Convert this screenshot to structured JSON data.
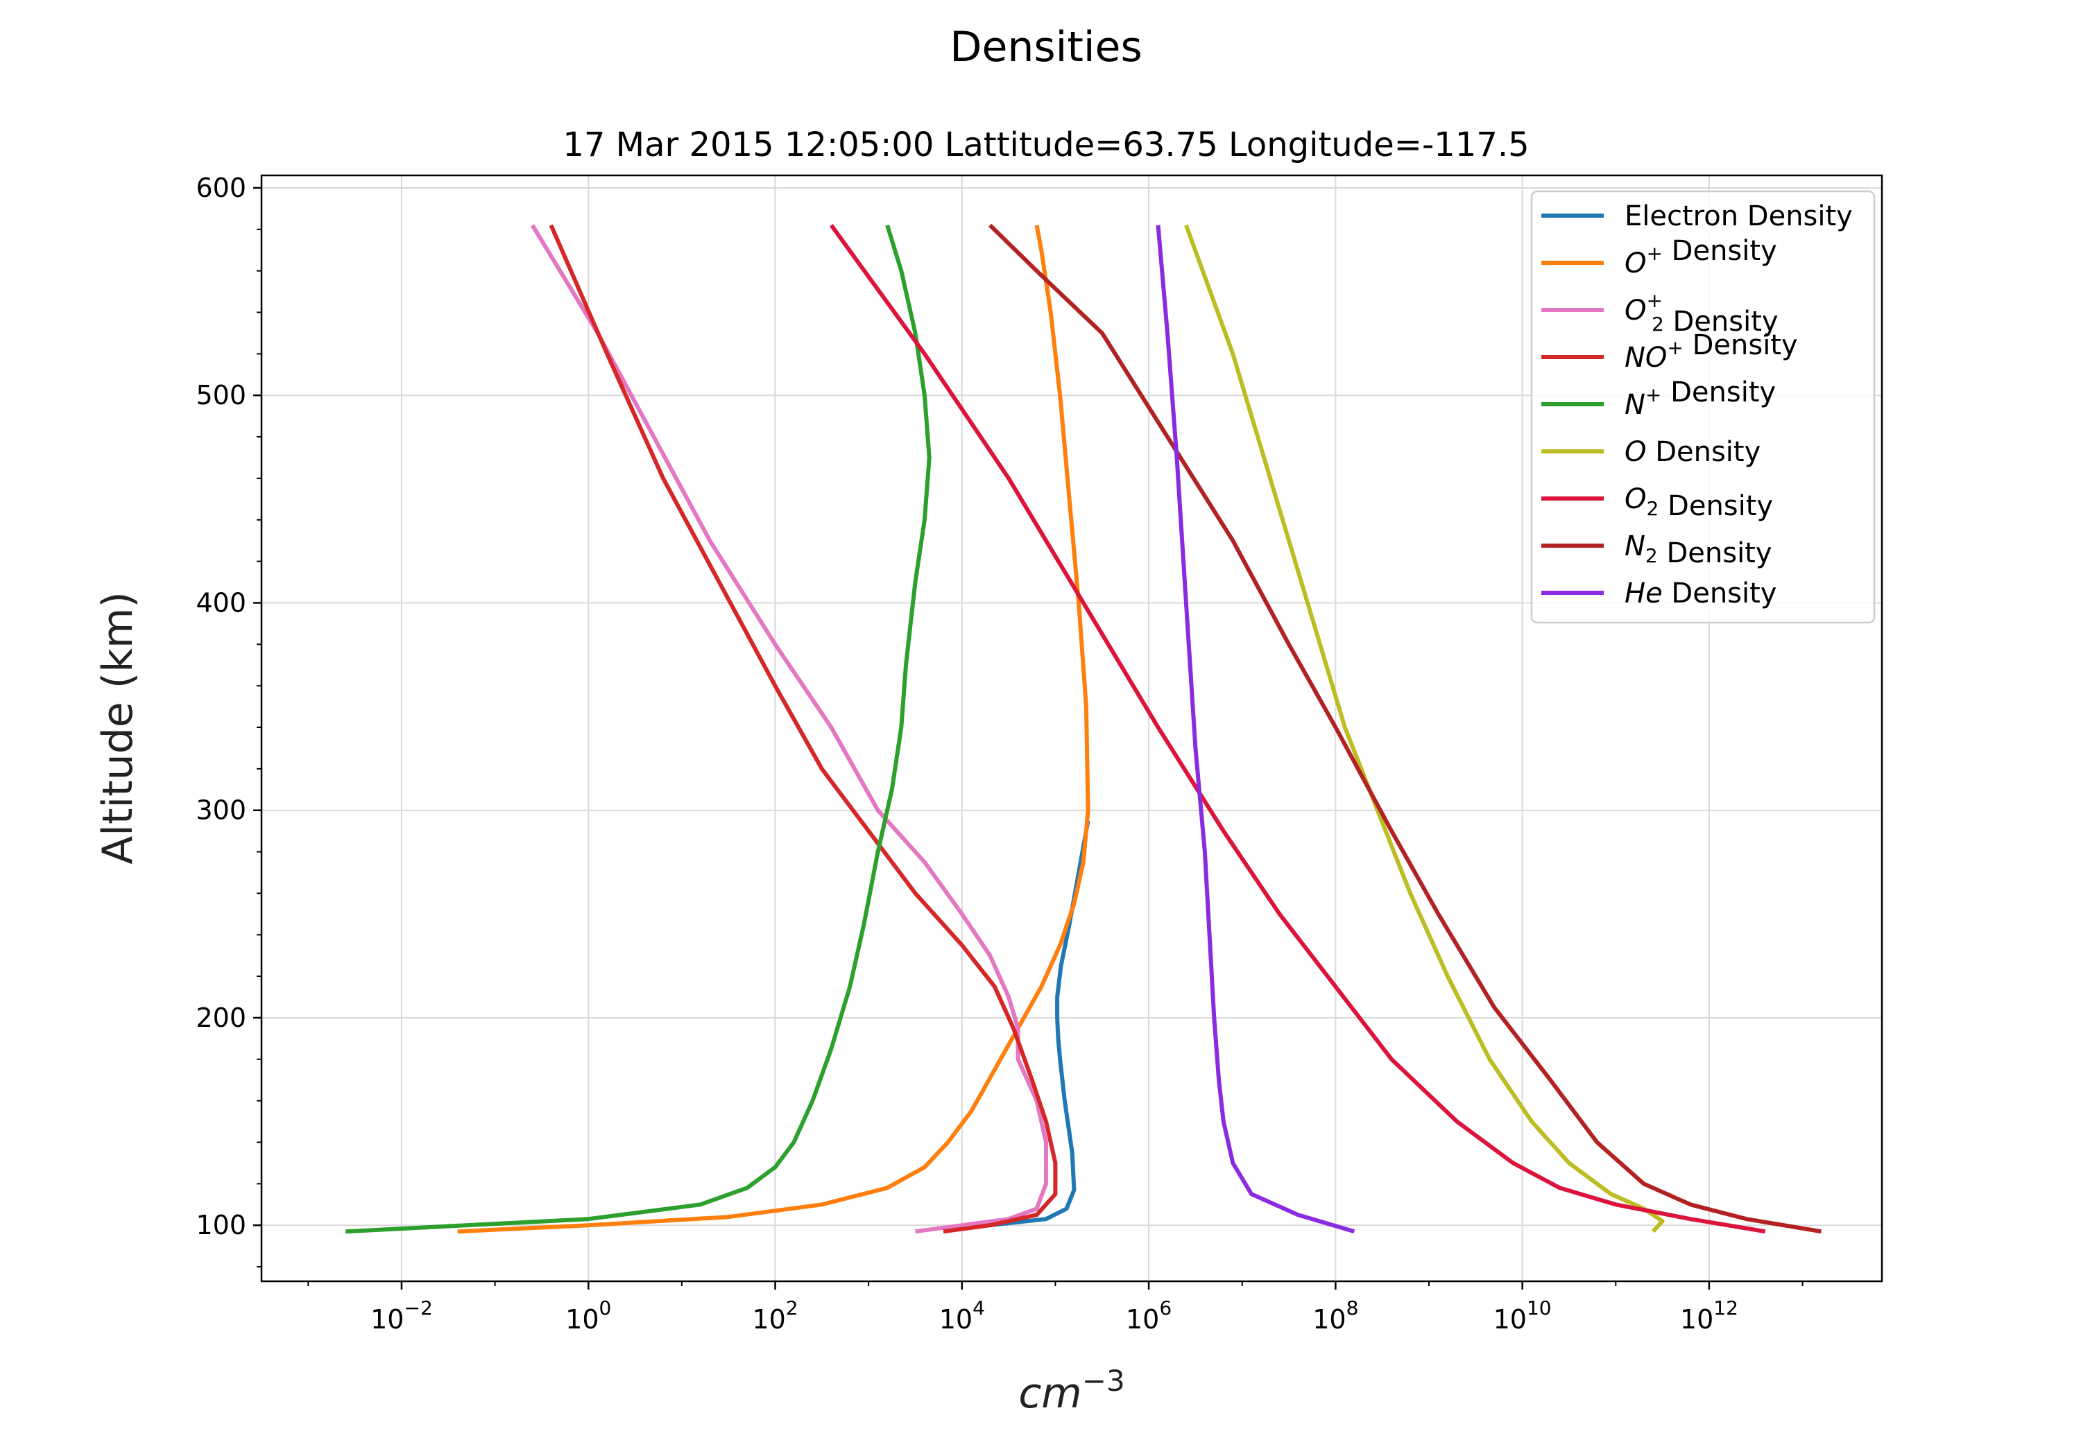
{
  "chart_data": {
    "type": "line",
    "suptitle": "Densities",
    "title": "17 Mar 2015 12:05:00 Lattitude=63.75 Longitude=-117.5",
    "xlabel": {
      "base": "cm",
      "sup": "−3"
    },
    "ylabel": "Altitude (km)",
    "xscale": "log",
    "xlim_log10": [
      -3.5,
      13.85
    ],
    "ylim": [
      73,
      606
    ],
    "grid": true,
    "legend_position": "upper right",
    "xticks": [
      {
        "base": "10",
        "exp": "−2",
        "log10": -2
      },
      {
        "base": "10",
        "exp": "0",
        "log10": 0
      },
      {
        "base": "10",
        "exp": "2",
        "log10": 2
      },
      {
        "base": "10",
        "exp": "4",
        "log10": 4
      },
      {
        "base": "10",
        "exp": "6",
        "log10": 6
      },
      {
        "base": "10",
        "exp": "8",
        "log10": 8
      },
      {
        "base": "10",
        "exp": "10",
        "log10": 10
      },
      {
        "base": "10",
        "exp": "12",
        "log10": 12
      }
    ],
    "yticks": [
      "100",
      "200",
      "300",
      "400",
      "500",
      "600"
    ],
    "series": [
      {
        "name": "Electron Density",
        "label_parts": [
          {
            "t": "Electron Density",
            "i": false
          }
        ],
        "color": "#1f77b4",
        "x_log10": [
          4.3,
          4.9,
          5.12,
          5.2,
          5.18,
          5.1,
          5.05,
          5.03,
          5.02,
          5.02,
          5.06,
          5.15,
          5.25,
          5.35
        ],
        "y": [
          100,
          103,
          108,
          117,
          135,
          160,
          180,
          190,
          200,
          210,
          225,
          245,
          270,
          295
        ]
      },
      {
        "name": "O+ Density",
        "label_parts": [
          {
            "t": "O",
            "i": true
          },
          {
            "t": "+",
            "sup": true
          },
          {
            "t": " Density",
            "i": false
          }
        ],
        "color": "#ff7f0e",
        "x_log10": [
          -1.4,
          0.0,
          1.5,
          2.5,
          3.2,
          3.6,
          3.85,
          4.1,
          4.35,
          4.6,
          4.85,
          5.05,
          5.2,
          5.3,
          5.35,
          5.33,
          5.25,
          5.15,
          5.05,
          4.95,
          4.85,
          4.8
        ],
        "y": [
          97,
          100,
          104,
          110,
          118,
          128,
          140,
          155,
          175,
          195,
          215,
          235,
          255,
          275,
          300,
          350,
          400,
          450,
          500,
          540,
          570,
          582
        ]
      },
      {
        "name": "O2+ Density",
        "label_parts": [
          {
            "t": "O",
            "i": true
          },
          {
            "t": "+",
            "supsub": "2"
          },
          {
            "t": " Density",
            "i": false
          }
        ],
        "color": "#e377c2",
        "x_log10": [
          3.5,
          4.0,
          4.5,
          4.8,
          4.9,
          4.9,
          4.8,
          4.6,
          4.6,
          4.6,
          4.5,
          4.3,
          4.0,
          3.6,
          3.1,
          2.6,
          2.0,
          1.3,
          0.7,
          0.1,
          -0.6
        ],
        "y": [
          97,
          100,
          103,
          108,
          120,
          140,
          160,
          180,
          185,
          195,
          210,
          230,
          250,
          275,
          300,
          340,
          380,
          430,
          480,
          530,
          582
        ]
      },
      {
        "name": "NO+ Density",
        "label_parts": [
          {
            "t": "NO",
            "i": true
          },
          {
            "t": "+",
            "sup": true
          },
          {
            "t": " Density",
            "i": false
          }
        ],
        "color": "#d62728",
        "x_log10": [
          3.8,
          4.3,
          4.8,
          5.0,
          5.0,
          4.9,
          4.75,
          4.55,
          4.35,
          4.0,
          3.5,
          3.0,
          2.5,
          2.0,
          1.4,
          0.8,
          0.2,
          -0.4
        ],
        "y": [
          97,
          100,
          105,
          115,
          130,
          150,
          170,
          195,
          215,
          235,
          260,
          290,
          320,
          360,
          410,
          460,
          520,
          582
        ]
      },
      {
        "name": "N+ Density",
        "label_parts": [
          {
            "t": "N",
            "i": true
          },
          {
            "t": "+",
            "sup": true
          },
          {
            "t": " Density",
            "i": false
          }
        ],
        "color": "#2ca02c",
        "x_log10": [
          -2.6,
          0.0,
          1.2,
          1.7,
          2.0,
          2.2,
          2.4,
          2.6,
          2.8,
          2.95,
          3.1,
          3.25,
          3.35,
          3.4,
          3.45,
          3.5,
          3.6,
          3.65,
          3.6,
          3.5,
          3.35,
          3.2
        ],
        "y": [
          97,
          103,
          110,
          118,
          128,
          140,
          160,
          185,
          215,
          245,
          280,
          310,
          340,
          370,
          390,
          410,
          440,
          470,
          500,
          530,
          560,
          582
        ]
      },
      {
        "name": "O Density",
        "label_parts": [
          {
            "t": "O",
            "i": true
          },
          {
            "t": " Density",
            "i": false
          }
        ],
        "color": "#bcbd22",
        "x_log10": [
          11.4,
          11.5,
          11.3,
          10.95,
          10.5,
          10.1,
          9.65,
          9.2,
          8.8,
          8.45,
          8.1,
          7.7,
          7.3,
          6.9,
          6.4
        ],
        "y": [
          97,
          102,
          108,
          115,
          130,
          150,
          180,
          220,
          260,
          300,
          340,
          400,
          460,
          520,
          582
        ]
      },
      {
        "name": "O2 Density",
        "label_parts": [
          {
            "t": "O",
            "i": true
          },
          {
            "t": "2",
            "sub": true
          },
          {
            "t": " Density",
            "i": false
          }
        ],
        "color": "#dc143c",
        "x_log10": [
          12.6,
          11.8,
          11.0,
          10.4,
          9.9,
          9.3,
          8.6,
          8.0,
          7.4,
          6.8,
          6.1,
          5.3,
          4.5,
          3.6,
          2.6
        ],
        "y": [
          97,
          103,
          110,
          118,
          130,
          150,
          180,
          215,
          250,
          290,
          340,
          400,
          460,
          520,
          582
        ]
      },
      {
        "name": "N2 Density",
        "label_parts": [
          {
            "t": "N",
            "i": true
          },
          {
            "t": "2",
            "sub": true
          },
          {
            "t": " Density",
            "i": false
          }
        ],
        "color": "#b22222",
        "x_log10": [
          13.2,
          12.4,
          11.8,
          11.3,
          10.8,
          10.3,
          9.7,
          9.1,
          8.6,
          8.0,
          7.5,
          6.9,
          6.2,
          5.5,
          4.8,
          4.3
        ],
        "y": [
          97,
          103,
          110,
          120,
          140,
          170,
          205,
          250,
          290,
          340,
          380,
          430,
          480,
          530,
          560,
          582
        ]
      },
      {
        "name": "He Density",
        "label_parts": [
          {
            "t": "He",
            "i": true
          },
          {
            "t": " Density",
            "i": false
          }
        ],
        "color": "#8a2be2",
        "x_log10": [
          8.2,
          7.6,
          7.1,
          6.9,
          6.8,
          6.75,
          6.7,
          6.65,
          6.6,
          6.5,
          6.4,
          6.3,
          6.2,
          6.1
        ],
        "y": [
          97,
          105,
          115,
          130,
          150,
          170,
          200,
          240,
          280,
          330,
          400,
          470,
          530,
          582
        ]
      }
    ]
  }
}
